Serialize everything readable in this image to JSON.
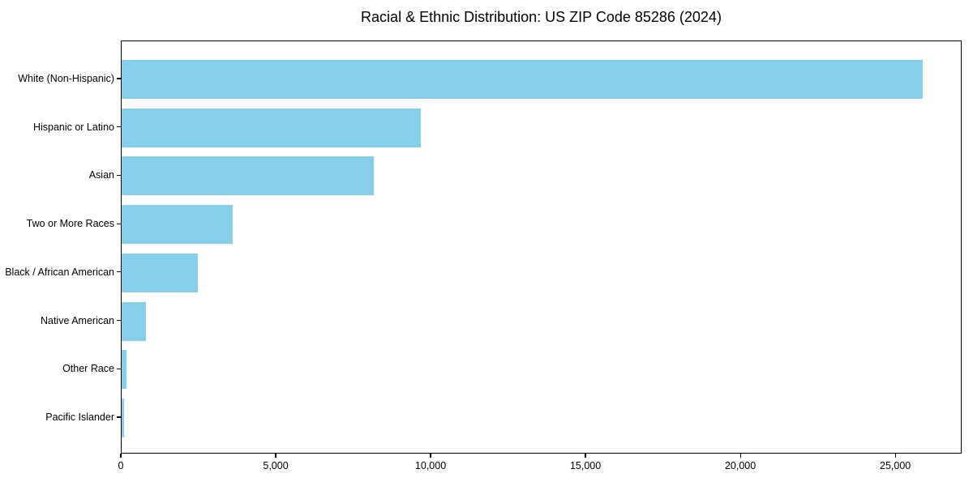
{
  "figure": {
    "title": "Racial & Ethnic Distribution: US ZIP Code 85286 (2024)"
  },
  "colors": {
    "bar": "#87CEEB",
    "axis": "#000000",
    "text": "#000000",
    "background": "#FFFFFF"
  },
  "chart_data": {
    "type": "bar",
    "orientation": "horizontal",
    "title": "Racial & Ethnic Distribution: US ZIP Code 85286 (2024)",
    "categories": [
      "White (Non-Hispanic)",
      "Hispanic or Latino",
      "Asian",
      "Two or More Races",
      "Black / African American",
      "Native American",
      "Other Race",
      "Pacific Islander"
    ],
    "values": [
      25850,
      9660,
      8140,
      3590,
      2460,
      785,
      155,
      80
    ],
    "xlabel": "",
    "ylabel": "",
    "xlim": [
      0,
      27143
    ],
    "x_ticks": [
      0,
      5000,
      10000,
      15000,
      20000,
      25000
    ],
    "x_tick_labels": [
      "0",
      "5,000",
      "10,000",
      "15,000",
      "20,000",
      "25,000"
    ],
    "grid": false,
    "legend_position": "none",
    "bar_color": "#87CEEB"
  }
}
